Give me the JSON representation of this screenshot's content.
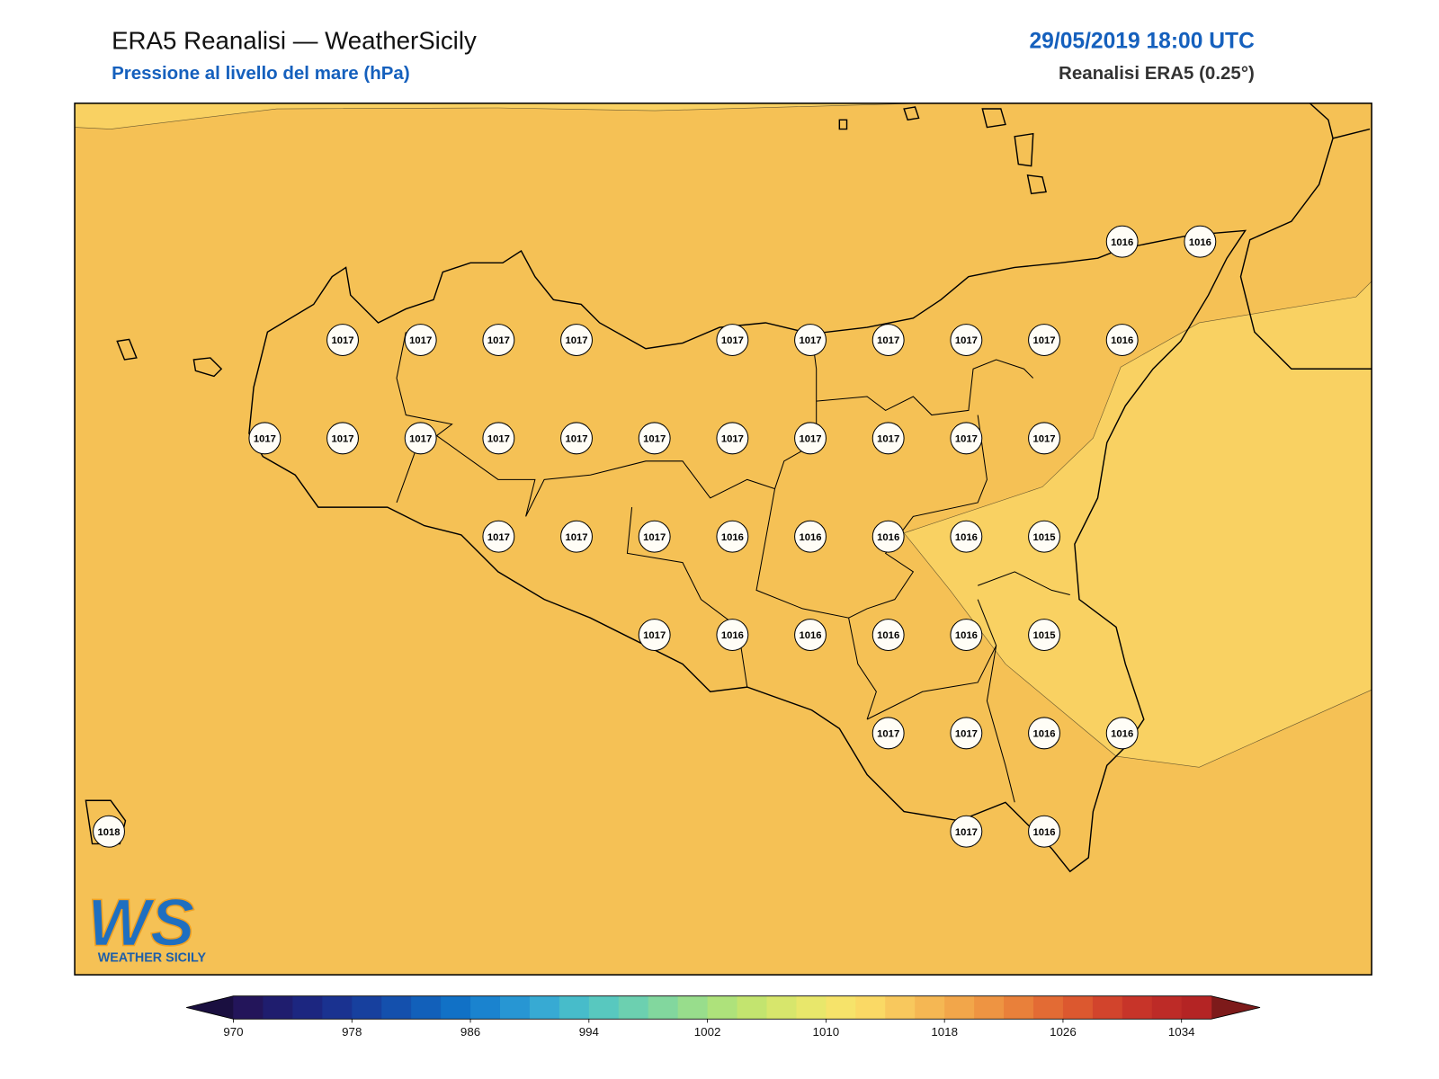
{
  "header": {
    "title": "ERA5 Reanalisi — WeatherSicily",
    "subtitle": "Pressione al livello del mare (hPa)",
    "datetime": "29/05/2019 18:00 UTC",
    "source": "Reanalisi ERA5 (0.25°)"
  },
  "map": {
    "pressure_grid": [
      [
        null,
        null,
        null,
        null,
        null,
        null,
        null,
        null,
        null,
        null,
        null,
        null,
        null,
        1016,
        1016,
        null
      ],
      [
        null,
        null,
        null,
        1017,
        1017,
        1017,
        1017,
        null,
        1017,
        1017,
        1017,
        1017,
        1017,
        1016,
        null,
        null
      ],
      [
        null,
        null,
        1017,
        1017,
        1017,
        1017,
        1017,
        1017,
        1017,
        1017,
        1017,
        1017,
        1017,
        null,
        null,
        null
      ],
      [
        null,
        null,
        null,
        null,
        null,
        1017,
        1017,
        1017,
        1016,
        1016,
        1016,
        1016,
        1015,
        null,
        null,
        null
      ],
      [
        null,
        null,
        null,
        null,
        null,
        null,
        null,
        1017,
        1016,
        1016,
        1016,
        1016,
        1015,
        null,
        null,
        null
      ],
      [
        null,
        null,
        null,
        null,
        null,
        null,
        null,
        null,
        null,
        null,
        1017,
        1017,
        1016,
        1016,
        null,
        null
      ],
      [
        1018,
        null,
        null,
        null,
        null,
        null,
        null,
        null,
        null,
        null,
        null,
        1017,
        1016,
        null,
        null,
        null
      ]
    ]
  },
  "colorbar": {
    "lim": [
      970,
      1036
    ],
    "ticks": [
      970,
      978,
      986,
      994,
      1002,
      1010,
      1018,
      1026,
      1034
    ],
    "colors": [
      "#23155a",
      "#1f1d6e",
      "#1c2680",
      "#1a3290",
      "#17409e",
      "#1450ad",
      "#1260ba",
      "#1171c6",
      "#1a83cf",
      "#2796d3",
      "#37aad3",
      "#47bcca",
      "#58c8bf",
      "#6cd0b0",
      "#82d79e",
      "#98dd8c",
      "#aee27b",
      "#c3e46f",
      "#d7e66c",
      "#e8e76b",
      "#f6e36a",
      "#fad965",
      "#f8c85d",
      "#f5b753",
      "#f2a64a",
      "#ee9442",
      "#e9803a",
      "#e36b34",
      "#dc582f",
      "#d2442c",
      "#c73429",
      "#bd2b27",
      "#b42424"
    ],
    "under_color": "#1a0f40",
    "over_color": "#7d1a1a"
  },
  "logo": {
    "letters": "WS",
    "text": "WEATHER SICILY"
  }
}
